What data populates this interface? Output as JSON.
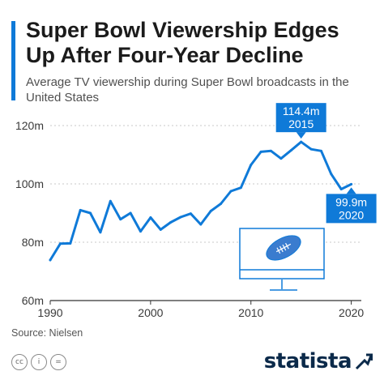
{
  "header": {
    "title": "Super Bowl Viewership Edges Up After Four-Year Decline",
    "subtitle": "Average TV viewership during Super Bowl broadcasts in the United States"
  },
  "chart_data": {
    "type": "line",
    "title": "Super Bowl Viewership Edges Up After Four-Year Decline",
    "subtitle": "Average TV viewership during Super Bowl broadcasts in the United States",
    "xlabel": "",
    "ylabel": "",
    "x": [
      1990,
      1991,
      1992,
      1993,
      1994,
      1995,
      1996,
      1997,
      1998,
      1999,
      2000,
      2001,
      2002,
      2003,
      2004,
      2005,
      2006,
      2007,
      2008,
      2009,
      2010,
      2011,
      2012,
      2013,
      2014,
      2015,
      2016,
      2017,
      2018,
      2019,
      2020
    ],
    "series": [
      {
        "values": [
          73.9,
          79.5,
          79.6,
          90.99,
          90.0,
          83.4,
          94.08,
          87.87,
          90.0,
          83.72,
          88.46,
          84.34,
          86.8,
          88.6,
          89.8,
          86.1,
          90.7,
          93.2,
          97.5,
          98.7,
          106.5,
          111.0,
          111.3,
          108.7,
          111.5,
          114.4,
          111.9,
          111.3,
          103.4,
          98.2,
          99.9
        ],
        "color": "#0f7ad8"
      }
    ],
    "xlim": [
      1990,
      2021
    ],
    "ylim": [
      60,
      120
    ],
    "x_ticks": [
      1990,
      2000,
      2010,
      2020
    ],
    "x_tick_labels": [
      "1990",
      "2000",
      "2010",
      "2020"
    ],
    "y_ticks": [
      60,
      80,
      100,
      120
    ],
    "y_tick_labels": [
      "60m",
      "80m",
      "100m",
      "120m"
    ],
    "grid": true,
    "legend": "none",
    "annotations": [
      {
        "x": 2015,
        "y": 114.4,
        "value": "114.4m",
        "year": "2015",
        "position": "above"
      },
      {
        "x": 2020,
        "y": 99.9,
        "value": "99.9m",
        "year": "2020",
        "position": "below"
      }
    ],
    "colors": {
      "line": "#0f7ad8",
      "callout": "#0f7ad8",
      "grid": "#c9c9c9"
    }
  },
  "footer": {
    "source": "Source: Nielsen",
    "brand": "statista",
    "icons": [
      "creative-commons-icon",
      "attribution-icon",
      "noderivs-icon"
    ]
  },
  "icons": {
    "decoration": "football-on-tv-icon"
  }
}
